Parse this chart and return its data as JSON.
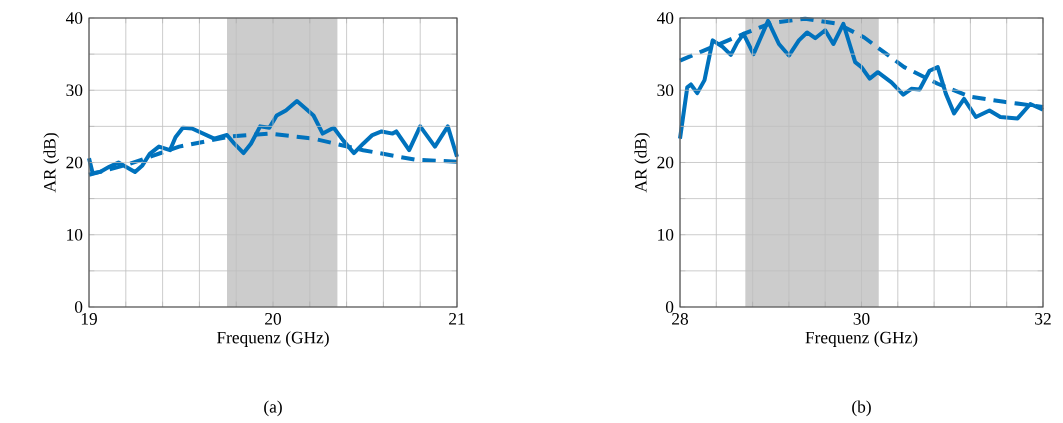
{
  "chart_data": [
    {
      "type": "line",
      "xlabel": "Frequenz (GHz)",
      "ylabel": "AR (dB)",
      "annotations": [
        "(a)"
      ],
      "grid": true,
      "xlim": [
        19,
        21
      ],
      "ylim": [
        0,
        40
      ],
      "xticks": [
        19,
        {
          "value": 19.2,
          "label": null
        },
        {
          "value": 19.4,
          "label": null
        },
        {
          "value": 19.6,
          "label": null
        },
        {
          "value": 19.8,
          "label": null
        },
        20,
        {
          "value": 20.2,
          "label": null
        },
        {
          "value": 20.4,
          "label": null
        },
        {
          "value": 20.6,
          "label": null
        },
        {
          "value": 20.8,
          "label": null
        },
        21
      ],
      "yticks": [
        0,
        {
          "value": 5,
          "label": null
        },
        10,
        {
          "value": 15,
          "label": null
        },
        20,
        {
          "value": 25,
          "label": null
        },
        30,
        {
          "value": 35,
          "label": null
        },
        40
      ],
      "bands": [
        {
          "axis": "x",
          "from": 19.75,
          "to": 20.35,
          "color": "#cccccc"
        }
      ],
      "series": [
        {
          "color": "#0072bd",
          "line_style": "solid",
          "x": [
            19.0,
            19.02,
            19.06,
            19.11,
            19.16,
            19.2,
            19.25,
            19.29,
            19.33,
            19.38,
            19.44,
            19.47,
            19.51,
            19.56,
            19.62,
            19.68,
            19.75,
            19.79,
            19.84,
            19.88,
            19.93,
            19.98,
            20.02,
            20.07,
            20.13,
            20.18,
            20.22,
            20.27,
            20.33,
            20.38,
            20.44,
            20.49,
            20.54,
            20.59,
            20.65,
            20.67,
            20.74,
            20.8,
            20.88,
            20.95,
            21.0
          ],
          "values": [
            20.6,
            18.5,
            18.7,
            19.4,
            20.0,
            19.4,
            18.7,
            19.6,
            21.2,
            22.2,
            21.7,
            23.5,
            24.8,
            24.7,
            24.0,
            23.3,
            23.8,
            22.6,
            21.3,
            22.6,
            25.0,
            24.8,
            26.5,
            27.2,
            28.5,
            27.4,
            26.5,
            24.0,
            24.8,
            23.1,
            21.3,
            22.6,
            23.8,
            24.3,
            24.0,
            24.3,
            21.7,
            25.0,
            22.2,
            25.0,
            20.8
          ]
        },
        {
          "color": "#0072bd",
          "line_style": "dashed",
          "x": [
            19.0,
            19.22,
            19.49,
            19.77,
            19.98,
            20.22,
            20.49,
            20.77,
            21.0
          ],
          "values": [
            18.3,
            19.8,
            22.2,
            23.6,
            24.0,
            23.3,
            21.7,
            20.4,
            20.1
          ]
        }
      ]
    },
    {
      "type": "line",
      "xlabel": "Frequenz (GHz)",
      "ylabel": "AR (dB)",
      "annotations": [
        "(b)"
      ],
      "grid": true,
      "xlim": [
        28,
        32
      ],
      "ylim": [
        0,
        40
      ],
      "xticks": [
        28,
        {
          "value": 28.4,
          "label": null
        },
        {
          "value": 28.8,
          "label": null
        },
        {
          "value": 29.2,
          "label": null
        },
        {
          "value": 29.6,
          "label": null
        },
        30,
        {
          "value": 30.4,
          "label": null
        },
        {
          "value": 30.8,
          "label": null
        },
        {
          "value": 31.2,
          "label": null
        },
        {
          "value": 31.6,
          "label": null
        },
        32
      ],
      "yticks": [
        0,
        {
          "value": 5,
          "label": null
        },
        10,
        {
          "value": 15,
          "label": null
        },
        20,
        {
          "value": 25,
          "label": null
        },
        30,
        {
          "value": 35,
          "label": null
        },
        40
      ],
      "bands": [
        {
          "axis": "x",
          "from": 28.72,
          "to": 30.19,
          "color": "#cccccc"
        }
      ],
      "series": [
        {
          "color": "#0072bd",
          "line_style": "solid",
          "x": [
            28.0,
            28.08,
            28.12,
            28.19,
            28.27,
            28.36,
            28.47,
            28.56,
            28.63,
            28.7,
            28.81,
            28.89,
            28.97,
            29.09,
            29.2,
            29.31,
            29.4,
            29.49,
            29.6,
            29.69,
            29.8,
            29.93,
            30.0,
            30.09,
            30.18,
            30.33,
            30.46,
            30.55,
            30.64,
            30.75,
            30.84,
            30.93,
            31.02,
            31.13,
            31.26,
            31.41,
            31.53,
            31.72,
            31.86,
            32.0
          ],
          "values": [
            23.3,
            30.4,
            30.8,
            29.6,
            31.4,
            36.9,
            36.0,
            34.9,
            36.6,
            37.8,
            35.0,
            37.3,
            39.6,
            36.4,
            34.8,
            36.9,
            38.0,
            37.2,
            38.3,
            36.4,
            39.2,
            33.9,
            33.2,
            31.6,
            32.5,
            31.1,
            29.4,
            30.2,
            30.1,
            32.7,
            33.2,
            29.5,
            26.8,
            28.8,
            26.3,
            27.2,
            26.3,
            26.1,
            28.1,
            27.3
          ]
        },
        {
          "color": "#0072bd",
          "line_style": "dashed",
          "x": [
            28.0,
            28.36,
            28.72,
            29.01,
            29.38,
            29.74,
            30.03,
            30.47,
            30.84,
            31.2,
            31.57,
            32.0
          ],
          "values": [
            34.1,
            36.0,
            37.9,
            39.3,
            39.9,
            39.2,
            37.3,
            33.2,
            30.9,
            29.1,
            28.4,
            27.7
          ]
        }
      ]
    }
  ]
}
